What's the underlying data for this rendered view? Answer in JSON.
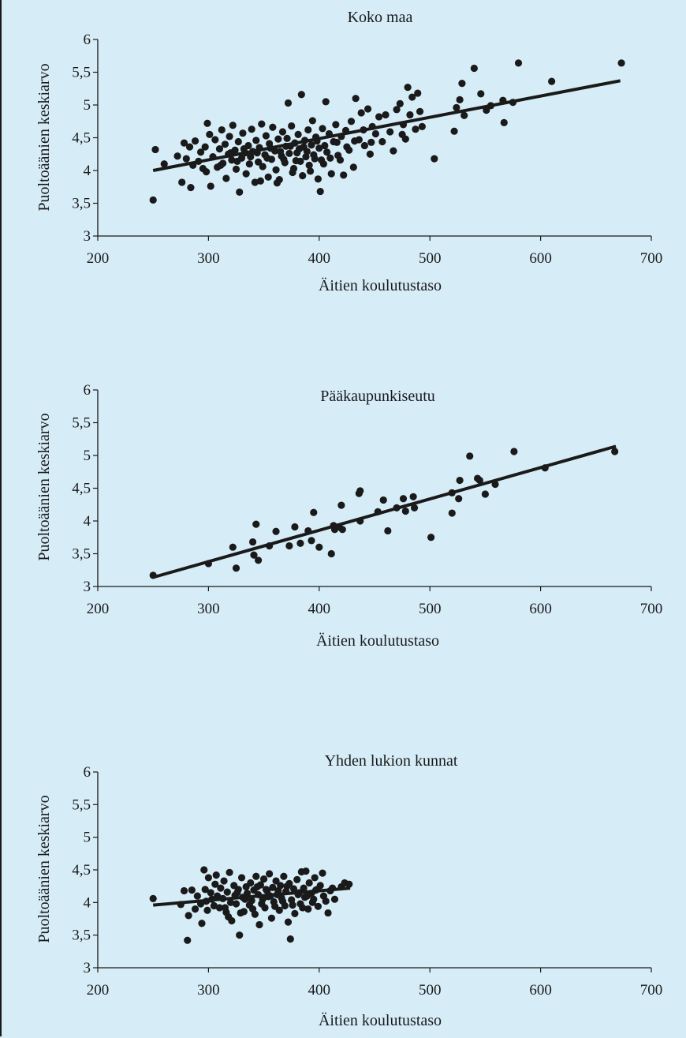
{
  "chart_data": [
    {
      "type": "scatter",
      "title": "Koko maa",
      "xlabel": "Äitien koulutustaso",
      "ylabel": "Puoltoäänien keskiarvo",
      "xlim": [
        200,
        700
      ],
      "ylim": [
        3,
        6
      ],
      "xticks": [
        200,
        300,
        400,
        500,
        600,
        700
      ],
      "yticks": [
        3,
        3.5,
        4,
        4.5,
        5,
        5.5,
        6
      ],
      "ytick_labels": [
        "3",
        "3,5",
        "4",
        "4,5",
        "5",
        "5,5",
        "6"
      ],
      "grid": false,
      "trendline": [
        [
          250,
          4.0
        ],
        [
          672,
          5.37
        ]
      ],
      "points": [
        [
          250,
          3.55
        ],
        [
          252,
          4.32
        ],
        [
          272,
          4.22
        ],
        [
          276,
          3.82
        ],
        [
          278,
          4.42
        ],
        [
          280,
          4.18
        ],
        [
          284,
          3.74
        ],
        [
          286,
          4.08
        ],
        [
          288,
          4.45
        ],
        [
          291,
          4.14
        ],
        [
          293,
          4.28
        ],
        [
          295,
          4.03
        ],
        [
          297,
          4.36
        ],
        [
          299,
          4.72
        ],
        [
          301,
          4.55
        ],
        [
          302,
          3.76
        ],
        [
          304,
          4.21
        ],
        [
          306,
          4.47
        ],
        [
          308,
          4.05
        ],
        [
          310,
          4.33
        ],
        [
          312,
          4.62
        ],
        [
          313,
          4.11
        ],
        [
          315,
          4.4
        ],
        [
          316,
          3.88
        ],
        [
          318,
          4.25
        ],
        [
          319,
          4.52
        ],
        [
          321,
          4.16
        ],
        [
          322,
          4.69
        ],
        [
          324,
          4.31
        ],
        [
          325,
          4.02
        ],
        [
          327,
          4.44
        ],
        [
          328,
          3.67
        ],
        [
          330,
          4.19
        ],
        [
          331,
          4.57
        ],
        [
          333,
          4.27
        ],
        [
          334,
          3.95
        ],
        [
          336,
          4.38
        ],
        [
          337,
          4.1
        ],
        [
          339,
          4.63
        ],
        [
          340,
          4.29
        ],
        [
          342,
          3.82
        ],
        [
          343,
          4.46
        ],
        [
          345,
          4.13
        ],
        [
          346,
          4.35
        ],
        [
          348,
          4.71
        ],
        [
          349,
          4.06
        ],
        [
          351,
          4.24
        ],
        [
          352,
          4.53
        ],
        [
          354,
          3.9
        ],
        [
          355,
          4.41
        ],
        [
          357,
          4.17
        ],
        [
          358,
          4.66
        ],
        [
          360,
          4.3
        ],
        [
          361,
          4.01
        ],
        [
          363,
          4.48
        ],
        [
          364,
          3.86
        ],
        [
          366,
          4.22
        ],
        [
          367,
          4.59
        ],
        [
          369,
          4.12
        ],
        [
          370,
          4.37
        ],
        [
          372,
          5.03
        ],
        [
          373,
          4.26
        ],
        [
          375,
          4.68
        ],
        [
          376,
          3.97
        ],
        [
          378,
          4.42
        ],
        [
          379,
          4.15
        ],
        [
          381,
          4.55
        ],
        [
          382,
          4.33
        ],
        [
          384,
          5.16
        ],
        [
          385,
          3.92
        ],
        [
          387,
          4.46
        ],
        [
          388,
          4.21
        ],
        [
          390,
          4.62
        ],
        [
          391,
          4.08
        ],
        [
          393,
          4.39
        ],
        [
          394,
          4.76
        ],
        [
          396,
          4.18
        ],
        [
          397,
          4.51
        ],
        [
          399,
          3.87
        ],
        [
          400,
          4.34
        ],
        [
          401,
          3.68
        ],
        [
          403,
          4.64
        ],
        [
          404,
          4.1
        ],
        [
          406,
          5.05
        ],
        [
          407,
          4.28
        ],
        [
          409,
          4.56
        ],
        [
          411,
          3.95
        ],
        [
          413,
          4.44
        ],
        [
          415,
          4.7
        ],
        [
          417,
          4.23
        ],
        [
          420,
          4.52
        ],
        [
          422,
          3.93
        ],
        [
          424,
          4.61
        ],
        [
          427,
          4.31
        ],
        [
          429,
          4.75
        ],
        [
          431,
          4.05
        ],
        [
          433,
          5.1
        ],
        [
          436,
          4.47
        ],
        [
          438,
          4.88
        ],
        [
          441,
          4.38
        ],
        [
          444,
          4.94
        ],
        [
          446,
          4.25
        ],
        [
          448,
          4.67
        ],
        [
          451,
          4.56
        ],
        [
          454,
          4.82
        ],
        [
          457,
          4.44
        ],
        [
          460,
          4.85
        ],
        [
          464,
          4.59
        ],
        [
          467,
          4.3
        ],
        [
          470,
          4.93
        ],
        [
          473,
          5.02
        ],
        [
          476,
          4.7
        ],
        [
          478,
          4.48
        ],
        [
          480,
          5.27
        ],
        [
          482,
          4.85
        ],
        [
          484,
          5.12
        ],
        [
          487,
          4.63
        ],
        [
          489,
          5.18
        ],
        [
          491,
          4.9
        ],
        [
          493,
          4.67
        ],
        [
          504,
          4.18
        ],
        [
          522,
          4.6
        ],
        [
          524,
          4.96
        ],
        [
          527,
          5.08
        ],
        [
          529,
          5.33
        ],
        [
          531,
          4.84
        ],
        [
          540,
          5.56
        ],
        [
          546,
          5.17
        ],
        [
          551,
          4.92
        ],
        [
          555,
          4.99
        ],
        [
          566,
          5.07
        ],
        [
          567,
          4.73
        ],
        [
          575,
          5.04
        ],
        [
          580,
          5.64
        ],
        [
          610,
          5.36
        ],
        [
          673,
          5.64
        ],
        [
          260,
          4.1
        ],
        [
          283,
          4.36
        ],
        [
          298,
          3.98
        ],
        [
          311,
          4.08
        ],
        [
          320,
          4.27
        ],
        [
          326,
          4.14
        ],
        [
          332,
          4.33
        ],
        [
          338,
          4.21
        ],
        [
          344,
          4.27
        ],
        [
          347,
          3.84
        ],
        [
          353,
          4.19
        ],
        [
          356,
          4.34
        ],
        [
          362,
          3.81
        ],
        [
          365,
          4.29
        ],
        [
          368,
          4.17
        ],
        [
          371,
          4.49
        ],
        [
          374,
          4.37
        ],
        [
          377,
          4.03
        ],
        [
          380,
          4.27
        ],
        [
          383,
          4.14
        ],
        [
          386,
          4.36
        ],
        [
          389,
          4.29
        ],
        [
          392,
          3.99
        ],
        [
          395,
          4.24
        ],
        [
          398,
          4.45
        ],
        [
          402,
          4.16
        ],
        [
          405,
          4.38
        ],
        [
          410,
          4.19
        ],
        [
          416,
          4.43
        ],
        [
          419,
          4.16
        ],
        [
          425,
          4.36
        ],
        [
          432,
          4.45
        ],
        [
          440,
          4.62
        ],
        [
          447,
          4.43
        ],
        [
          475,
          4.55
        ]
      ]
    },
    {
      "type": "scatter",
      "title": "Pääkaupunkiseutu",
      "xlabel": "Äitien koulutustaso",
      "ylabel": "Puoltoäänien keskiarvo",
      "xlim": [
        200,
        700
      ],
      "ylim": [
        3,
        6
      ],
      "xticks": [
        200,
        300,
        400,
        500,
        600,
        700
      ],
      "yticks": [
        3,
        3.5,
        4,
        4.5,
        5,
        5.5,
        6
      ],
      "ytick_labels": [
        "3",
        "3,5",
        "4",
        "4,5",
        "5",
        "5,5",
        "6"
      ],
      "grid": false,
      "trendline": [
        [
          250,
          3.14
        ],
        [
          668,
          5.14
        ]
      ],
      "points": [
        [
          250,
          3.17
        ],
        [
          300,
          3.35
        ],
        [
          322,
          3.6
        ],
        [
          325,
          3.28
        ],
        [
          340,
          3.68
        ],
        [
          341,
          3.48
        ],
        [
          343,
          3.95
        ],
        [
          345,
          3.4
        ],
        [
          355,
          3.62
        ],
        [
          361,
          3.84
        ],
        [
          373,
          3.62
        ],
        [
          378,
          3.91
        ],
        [
          383,
          3.66
        ],
        [
          390,
          3.85
        ],
        [
          393,
          3.7
        ],
        [
          395,
          4.13
        ],
        [
          400,
          3.6
        ],
        [
          411,
          3.5
        ],
        [
          413,
          3.93
        ],
        [
          414,
          3.87
        ],
        [
          418,
          3.91
        ],
        [
          420,
          4.24
        ],
        [
          421,
          3.87
        ],
        [
          436,
          4.42
        ],
        [
          437,
          4.46
        ],
        [
          437,
          4
        ],
        [
          453,
          4.14
        ],
        [
          458,
          4.32
        ],
        [
          462,
          3.85
        ],
        [
          470,
          4.2
        ],
        [
          476,
          4.34
        ],
        [
          478,
          4.15
        ],
        [
          485,
          4.37
        ],
        [
          486,
          4.2
        ],
        [
          501,
          3.75
        ],
        [
          520,
          4.43
        ],
        [
          520,
          4.12
        ],
        [
          526,
          4.34
        ],
        [
          527,
          4.62
        ],
        [
          536,
          4.99
        ],
        [
          543,
          4.65
        ],
        [
          545,
          4.62
        ],
        [
          550,
          4.41
        ],
        [
          559,
          4.56
        ],
        [
          576,
          5.06
        ],
        [
          604,
          4.81
        ],
        [
          667,
          5.06
        ]
      ]
    },
    {
      "type": "scatter",
      "title": "Yhden lukion kunnat",
      "xlabel": "Äitien koulutustaso",
      "ylabel": "Puoltoäänien keskiarvo",
      "xlim": [
        200,
        700
      ],
      "ylim": [
        3,
        6
      ],
      "xticks": [
        200,
        300,
        400,
        500,
        600,
        700
      ],
      "yticks": [
        3,
        3.5,
        4,
        4.5,
        5,
        5.5,
        6
      ],
      "ytick_labels": [
        "3",
        "3,5",
        "4",
        "4,5",
        "5",
        "5,5",
        "6"
      ],
      "grid": false,
      "trendline": [
        [
          250,
          3.96
        ],
        [
          428,
          4.22
        ]
      ],
      "points": [
        [
          250,
          4.06
        ],
        [
          275,
          3.97
        ],
        [
          278,
          4.18
        ],
        [
          281,
          3.42
        ],
        [
          282,
          3.8
        ],
        [
          285,
          4.19
        ],
        [
          288,
          3.9
        ],
        [
          290,
          4.1
        ],
        [
          293,
          3.98
        ],
        [
          294,
          3.68
        ],
        [
          296,
          4.5
        ],
        [
          297,
          4.2
        ],
        [
          298,
          4.02
        ],
        [
          299,
          3.88
        ],
        [
          300,
          4.38
        ],
        [
          302,
          4.15
        ],
        [
          303,
          4.05
        ],
        [
          305,
          3.95
        ],
        [
          306,
          4.28
        ],
        [
          307,
          4.42
        ],
        [
          308,
          4.1
        ],
        [
          310,
          3.92
        ],
        [
          311,
          4.22
        ],
        [
          313,
          4.06
        ],
        [
          314,
          4.33
        ],
        [
          316,
          3.85
        ],
        [
          317,
          4.16
        ],
        [
          319,
          4.46
        ],
        [
          320,
          4.0
        ],
        [
          321,
          3.72
        ],
        [
          323,
          4.26
        ],
        [
          324,
          4.11
        ],
        [
          325,
          3.98
        ],
        [
          327,
          4.2
        ],
        [
          328,
          3.5
        ],
        [
          330,
          4.38
        ],
        [
          331,
          4.08
        ],
        [
          332,
          3.86
        ],
        [
          334,
          4.24
        ],
        [
          335,
          4.14
        ],
        [
          337,
          3.96
        ],
        [
          338,
          4.3
        ],
        [
          339,
          4.03
        ],
        [
          341,
          4.19
        ],
        [
          342,
          3.82
        ],
        [
          343,
          4.4
        ],
        [
          345,
          4.12
        ],
        [
          346,
          3.66
        ],
        [
          347,
          4.27
        ],
        [
          349,
          4.05
        ],
        [
          350,
          4.36
        ],
        [
          351,
          3.92
        ],
        [
          353,
          4.18
        ],
        [
          354,
          4.09
        ],
        [
          355,
          4.44
        ],
        [
          357,
          3.76
        ],
        [
          358,
          4.23
        ],
        [
          359,
          4.01
        ],
        [
          361,
          4.33
        ],
        [
          362,
          4.12
        ],
        [
          364,
          3.88
        ],
        [
          365,
          4.26
        ],
        [
          366,
          4.07
        ],
        [
          368,
          4.4
        ],
        [
          369,
          3.95
        ],
        [
          370,
          4.17
        ],
        [
          372,
          3.7
        ],
        [
          373,
          4.29
        ],
        [
          374,
          3.44
        ],
        [
          375,
          4.04
        ],
        [
          377,
          4.21
        ],
        [
          378,
          3.83
        ],
        [
          380,
          4.35
        ],
        [
          381,
          4.12
        ],
        [
          383,
          3.98
        ],
        [
          384,
          4.47
        ],
        [
          386,
          4.22
        ],
        [
          387,
          4.08
        ],
        [
          388,
          4.48
        ],
        [
          390,
          3.9
        ],
        [
          391,
          4.3
        ],
        [
          393,
          4.14
        ],
        [
          394,
          4.0
        ],
        [
          396,
          4.38
        ],
        [
          397,
          4.19
        ],
        [
          399,
          3.94
        ],
        [
          401,
          4.26
        ],
        [
          403,
          4.45
        ],
        [
          404,
          4.1
        ],
        [
          406,
          4.02
        ],
        [
          408,
          3.84
        ],
        [
          410,
          4.18
        ],
        [
          412,
          4.22
        ],
        [
          414,
          4.05
        ],
        [
          420,
          4.24
        ],
        [
          423,
          4.3
        ],
        [
          427,
          4.28
        ],
        [
          315,
          3.92
        ],
        [
          326,
          4.15
        ],
        [
          333,
          4.05
        ],
        [
          340,
          3.9
        ],
        [
          344,
          4.24
        ],
        [
          348,
          3.98
        ],
        [
          352,
          4.2
        ],
        [
          356,
          4.1
        ],
        [
          360,
          3.94
        ],
        [
          363,
          4.18
        ],
        [
          367,
          4.02
        ],
        [
          371,
          4.25
        ],
        [
          376,
          3.96
        ],
        [
          382,
          4.15
        ],
        [
          385,
          3.92
        ],
        [
          389,
          4.1
        ],
        [
          395,
          4.05
        ],
        [
          318,
          3.78
        ],
        [
          329,
          3.84
        ],
        [
          398,
          4.2
        ]
      ]
    }
  ]
}
